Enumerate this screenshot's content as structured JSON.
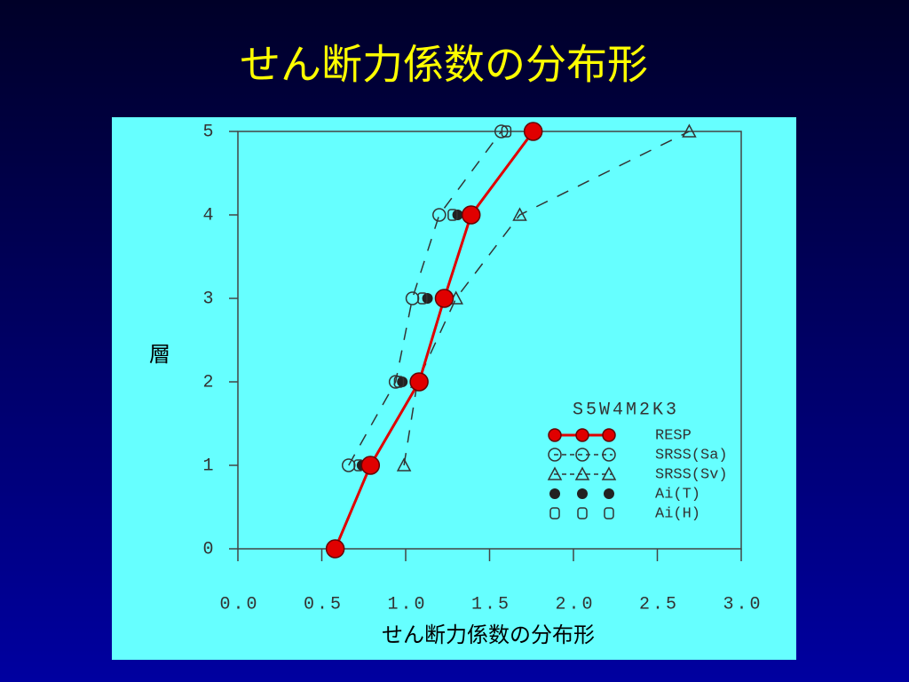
{
  "chart_data": {
    "type": "line",
    "title": "せん断力係数の分布形",
    "xlabel": "せん断力係数の分布形",
    "ylabel": "層",
    "legend_title": "S5W4M2K3",
    "y": [
      0,
      1,
      2,
      3,
      4,
      5
    ],
    "series": [
      {
        "name": "RESP",
        "color": "#e00000",
        "marker": "filled-circle",
        "line": "solid",
        "values": [
          0.58,
          0.79,
          1.08,
          1.23,
          1.39,
          1.76
        ]
      },
      {
        "name": "SRSS(Sa)",
        "color": "#333333",
        "marker": "open-circle",
        "line": "dashed",
        "values": [
          null,
          0.66,
          0.94,
          1.04,
          1.2,
          1.57
        ]
      },
      {
        "name": "SRSS(Sv)",
        "color": "#333333",
        "marker": "open-triangle",
        "line": "dashed",
        "values": [
          null,
          0.99,
          1.07,
          1.3,
          1.68,
          2.69
        ]
      },
      {
        "name": "Ai(T)",
        "color": "#222222",
        "marker": "filled-dot",
        "line": "none",
        "values": [
          null,
          0.74,
          0.98,
          1.13,
          1.31,
          null
        ]
      },
      {
        "name": "Ai(H)",
        "color": "#333333",
        "marker": "open-square",
        "line": "none",
        "values": [
          null,
          0.72,
          0.96,
          1.1,
          1.28,
          1.6
        ]
      }
    ],
    "xlim": [
      0,
      3
    ],
    "xticks": [
      {
        "value": 0,
        "label": "0.0"
      },
      {
        "value": 0.5,
        "label": "0.5"
      },
      {
        "value": 1,
        "label": "1.0"
      },
      {
        "value": 1.5,
        "label": "1.5"
      },
      {
        "value": 2,
        "label": "2.0"
      },
      {
        "value": 2.5,
        "label": "2.5"
      },
      {
        "value": 3,
        "label": "3.0"
      }
    ],
    "ylim": [
      0,
      5
    ],
    "yticks": [
      0,
      1,
      2,
      3,
      4,
      5
    ]
  }
}
